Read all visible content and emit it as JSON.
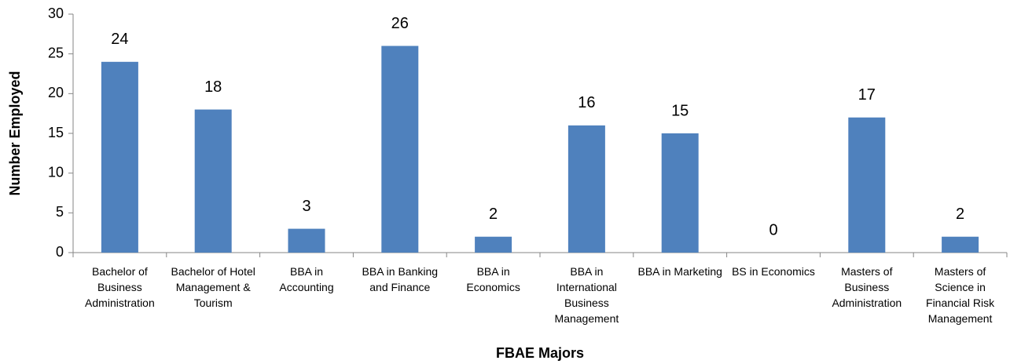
{
  "chart_data": {
    "type": "bar",
    "x_label": "FBAE Majors",
    "y_label": "Number Employed",
    "categories": [
      "Bachelor of Business Administration",
      "Bachelor of Hotel Management & Tourism",
      "BBA in Accounting",
      "BBA in Banking and Finance",
      "BBA in Economics",
      "BBA in International Business Management",
      "BBA in Marketing",
      "BS in Economics",
      "Masters of Business Administration",
      "Masters of Science in Financial Risk Management"
    ],
    "values": [
      24,
      18,
      3,
      26,
      2,
      16,
      15,
      0,
      17,
      2
    ],
    "color": "#4f81bd",
    "ylim": [
      0,
      30
    ],
    "yticks": [
      0,
      5,
      10,
      15,
      20,
      25,
      30
    ],
    "grid": false
  }
}
